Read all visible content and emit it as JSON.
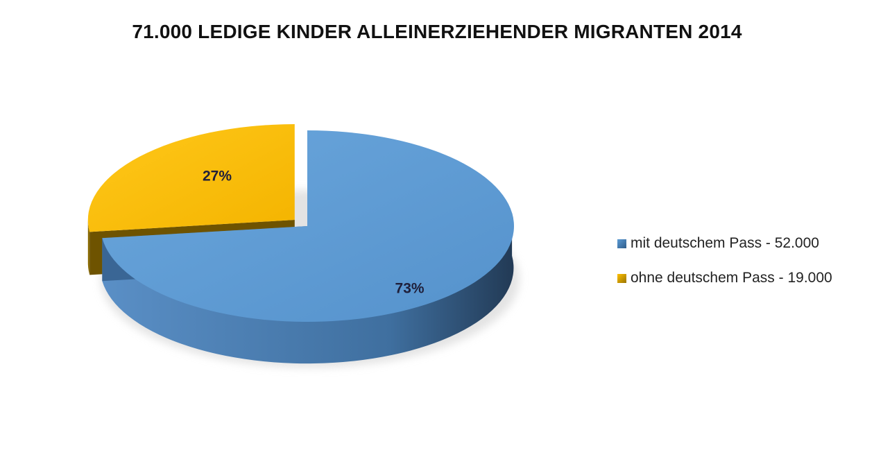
{
  "chart_data": {
    "type": "pie",
    "title": "71.000 LEDIGE KINDER ALLEINERZIEHENDER MIGRANTEN 2014",
    "slices": [
      {
        "name": "mit deutschem Pass - 52.000",
        "value": 52000,
        "percent": 73,
        "label": "73%",
        "color": "#5b9bd5",
        "exploded": false
      },
      {
        "name": "ohne deutschem Pass - 19.000",
        "value": 19000,
        "percent": 27,
        "label": "27%",
        "color": "#ffc000",
        "exploded": true
      }
    ],
    "style": "3d-exploded",
    "legend_position": "right"
  }
}
